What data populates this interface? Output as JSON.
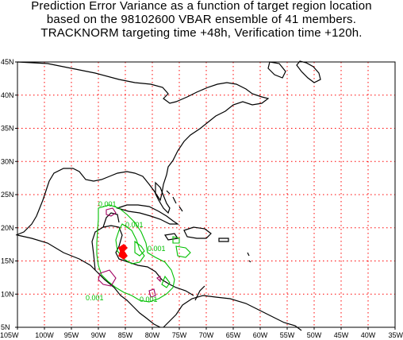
{
  "title_lines": [
    "Prediction Error Variance as a function of target region location",
    "based on the 98102600 VBAR ensemble of 41 members.",
    "TRACKNORM targeting time +48h, Verification time +120h."
  ],
  "axes": {
    "lon_labels": [
      "105W",
      "100W",
      "95W",
      "90W",
      "85W",
      "80W",
      "75W",
      "70W",
      "65W",
      "60W",
      "55W",
      "50W",
      "45W",
      "40W",
      "35W"
    ],
    "lat_labels": [
      "5N",
      "10N",
      "15N",
      "20N",
      "25N",
      "30N",
      "35N",
      "40N",
      "45N"
    ],
    "lon_range": [
      -105,
      -35
    ],
    "lat_range": [
      5,
      45
    ],
    "grid": true,
    "grid_color": "#ff0000"
  },
  "contours": {
    "level_label": "0.001",
    "colors": {
      "low": "#00c000",
      "high": "#a00060",
      "max": "#ff0000",
      "coast": "#000000"
    }
  }
}
